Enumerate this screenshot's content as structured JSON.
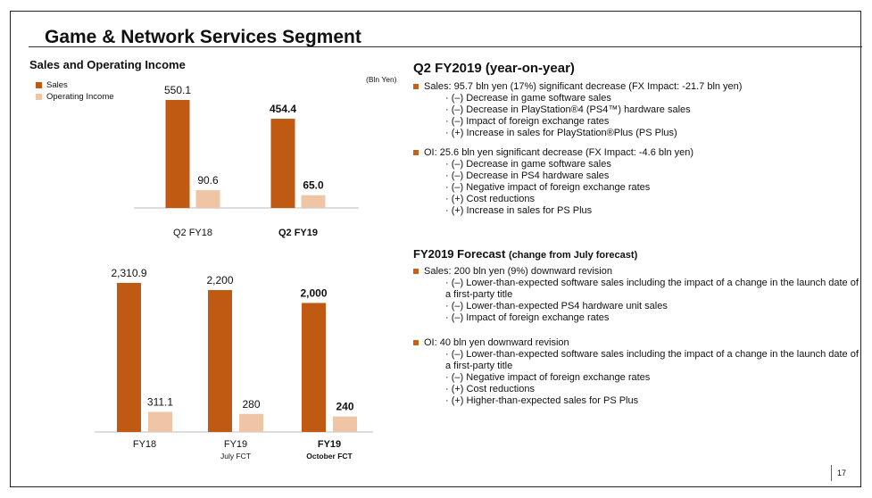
{
  "title": "Game & Network Services Segment",
  "subtitle": "Sales and Operating Income",
  "unit_label": "(Bln Yen)",
  "legend": [
    {
      "label": "Sales",
      "color": "#c05a12"
    },
    {
      "label": "Operating Income",
      "color": "#f0c5a6"
    }
  ],
  "chart_data": [
    {
      "type": "bar",
      "categories": [
        "Q2 FY18",
        "Q2 FY19"
      ],
      "series": [
        {
          "name": "Sales",
          "values": [
            550.1,
            454.4
          ]
        },
        {
          "name": "Operating Income",
          "values": [
            90.6,
            65.0
          ]
        }
      ],
      "labels": [
        [
          "550.1",
          "454.4"
        ],
        [
          "90.6",
          "65.0"
        ]
      ],
      "bold_categories": [
        false,
        true
      ]
    },
    {
      "type": "bar",
      "categories": [
        "FY18",
        "FY19",
        "FY19"
      ],
      "category_sublabels": [
        "",
        "July FCT",
        "October FCT"
      ],
      "series": [
        {
          "name": "Sales",
          "values": [
            2310.9,
            2200,
            2000
          ]
        },
        {
          "name": "Operating Income",
          "values": [
            311.1,
            280,
            240
          ]
        }
      ],
      "labels": [
        [
          "2,310.9",
          "2,200",
          "2,000"
        ],
        [
          "311.1",
          "280",
          "240"
        ]
      ],
      "bold_categories": [
        false,
        false,
        true
      ]
    }
  ],
  "q2": {
    "heading": "Q2 FY2019 (year-on-year)",
    "sales_bullet": "Sales: 95.7 bln yen (17%) significant decrease   (FX Impact: -21.7 bln yen)",
    "sales_items": [
      "(–) Decrease in game software sales",
      "(–) Decrease in PlayStation®4 (PS4™) hardware sales",
      "(–) Impact of foreign exchange rates",
      "(+) Increase in sales for PlayStation®Plus (PS Plus)"
    ],
    "oi_bullet": "OI: 25.6 bln yen significant decrease (FX Impact:  -4.6 bln yen)",
    "oi_items": [
      "(–) Decrease in game software sales",
      "(–) Decrease in PS4 hardware sales",
      "(–) Negative impact of foreign exchange rates",
      "(+) Cost reductions",
      "(+) Increase in sales for PS Plus"
    ]
  },
  "forecast": {
    "heading": "FY2019 Forecast",
    "heading_sub": "(change from July forecast)",
    "sales_bullet": "Sales: 200 bln yen (9%) downward revision",
    "sales_items": [
      "(–) Lower-than-expected software sales including the impact of a change in the launch date of a first-party title",
      "(–) Lower-than-expected PS4 hardware unit sales",
      "(–) Impact of foreign exchange rates"
    ],
    "oi_bullet": "OI: 40 bln yen downward revision",
    "oi_items": [
      "(–) Lower-than-expected software sales including the impact of a change in the launch date of a first-party title",
      "(–) Negative impact of foreign exchange rates",
      "(+) Cost reductions",
      "(+) Higher-than-expected sales for PS Plus"
    ]
  },
  "page_number": "17"
}
